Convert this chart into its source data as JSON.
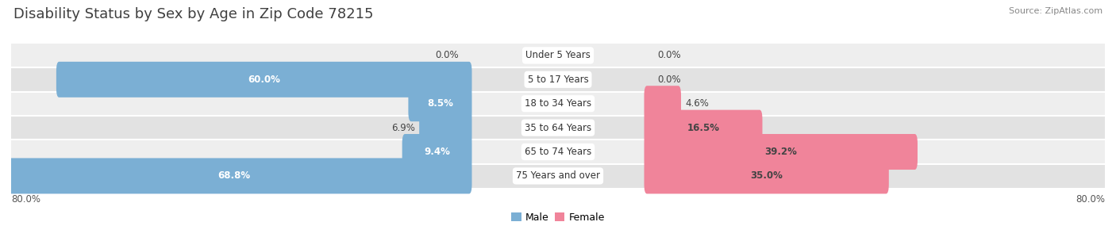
{
  "title": "Disability Status by Sex by Age in Zip Code 78215",
  "source": "Source: ZipAtlas.com",
  "categories": [
    "Under 5 Years",
    "5 to 17 Years",
    "18 to 34 Years",
    "35 to 64 Years",
    "65 to 74 Years",
    "75 Years and over"
  ],
  "male_values": [
    0.0,
    60.0,
    8.5,
    6.9,
    9.4,
    68.8
  ],
  "female_values": [
    0.0,
    0.0,
    4.6,
    16.5,
    39.2,
    35.0
  ],
  "male_color": "#7bafd4",
  "female_color": "#f0849a",
  "row_bg_even": "#eeeeee",
  "row_bg_odd": "#e2e2e2",
  "max_val": 80.0,
  "title_color": "#404040",
  "title_fontsize": 13,
  "value_fontsize": 8.5,
  "category_fontsize": 8.5,
  "axis_label_fontsize": 8.5,
  "source_fontsize": 8,
  "legend_fontsize": 9
}
